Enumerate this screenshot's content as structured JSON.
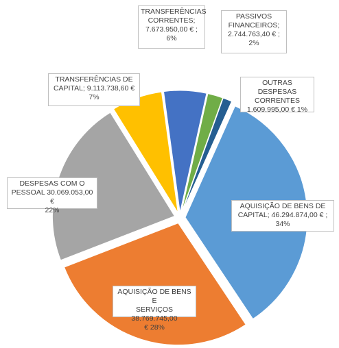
{
  "chart_data": {
    "type": "pie",
    "title": "",
    "exploded": true,
    "slices": [
      {
        "label": "AQUISIÇÃO DE BENS DE CAPITAL",
        "value": 46294874.0,
        "percent": 34,
        "callout": "AQUISIÇÃO DE BENS DE\nCAPITAL;  46.294.874,00 € ;\n34%",
        "color": "#5B9BD5"
      },
      {
        "label": "AQUISIÇÃO DE BENS E SERVIÇOS",
        "value": 38769745.0,
        "percent": 28,
        "callout": "AQUISIÇÃO DE BENS E\nSERVIÇOS 38.769.745,00\n€    28%",
        "color": "#ED7D31"
      },
      {
        "label": "DESPESAS COM O PESSOAL",
        "value": 30069053.0,
        "percent": 22,
        "callout": "DESPESAS COM O\nPESSOAL 30.069.053,00 €\n22%",
        "color": "#A5A5A5"
      },
      {
        "label": "TRANSFERÊNCIAS DE CAPITAL",
        "value": 9113738.6,
        "percent": 7,
        "callout": "TRANSFERÊNCIAS DE\nCAPITAL;  9.113.738,60 €\n7%",
        "color": "#FFC000"
      },
      {
        "label": "TRANSFERÊNCIAS CORRENTES",
        "value": 7673950.0,
        "percent": 6,
        "callout": "TRANSFERÊNCIAS\nCORRENTES;\n7.673.950,00 € ;\n6%",
        "color": "#4472C4"
      },
      {
        "label": "PASSIVOS FINANCEIROS",
        "value": 2744763.4,
        "percent": 2,
        "callout": "PASSIVOS\nFINANCEIROS;\n2.744.763,40 € ;\n2%",
        "color": "#70AD47"
      },
      {
        "label": "OUTRAS DESPESAS CORRENTES",
        "value": 1609995.0,
        "percent": 1,
        "callout": "OUTRAS DESPESAS\nCORRENTES\n1.609.995,00 € 1%",
        "color": "#255E91"
      }
    ]
  }
}
